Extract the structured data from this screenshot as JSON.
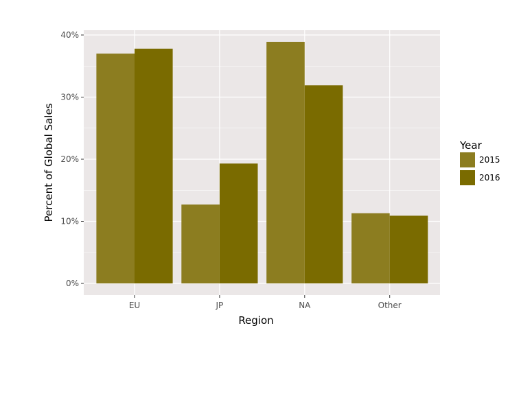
{
  "chart_data": {
    "type": "bar",
    "title": "",
    "xlabel": "Region",
    "ylabel": "Percent of Global Sales",
    "categories": [
      "EU",
      "JP",
      "NA",
      "Other"
    ],
    "series": [
      {
        "name": "2015",
        "values": [
          37.0,
          12.7,
          38.9,
          11.3
        ],
        "color": "#8c7d20"
      },
      {
        "name": "2016",
        "values": [
          37.8,
          19.3,
          31.9,
          10.9
        ],
        "color": "#7a6b00"
      }
    ],
    "ylim": [
      0,
      40
    ],
    "y_ticks": [
      0,
      10,
      20,
      30,
      40
    ],
    "y_tick_labels": [
      "0%",
      "10%",
      "20%",
      "30%",
      "40%"
    ],
    "legend_title": "Year",
    "legend_position": "right",
    "grid": true,
    "panel_background": "#ebe7e7",
    "grid_color": "#ffffff"
  }
}
